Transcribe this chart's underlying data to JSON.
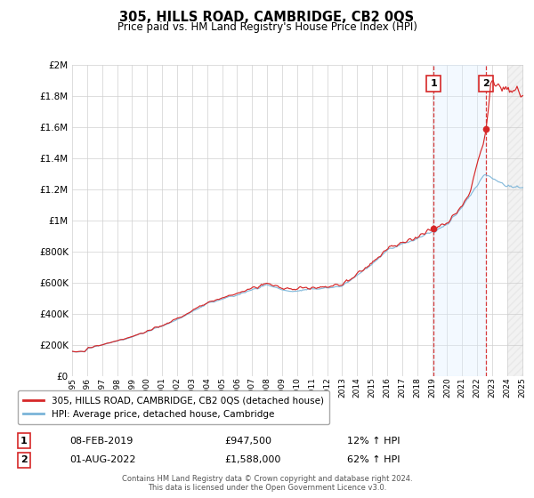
{
  "title": "305, HILLS ROAD, CAMBRIDGE, CB2 0QS",
  "subtitle": "Price paid vs. HM Land Registry's House Price Index (HPI)",
  "hpi_label": "HPI: Average price, detached house, Cambridge",
  "property_label": "305, HILLS ROAD, CAMBRIDGE, CB2 0QS (detached house)",
  "annotation1_date": "08-FEB-2019",
  "annotation1_price": "£947,500",
  "annotation1_hpi": "12% ↑ HPI",
  "annotation2_date": "01-AUG-2022",
  "annotation2_price": "£1,588,000",
  "annotation2_hpi": "62% ↑ HPI",
  "footer": "Contains HM Land Registry data © Crown copyright and database right 2024.\nThis data is licensed under the Open Government Licence v3.0.",
  "hpi_color": "#7ab4d8",
  "property_color": "#d62728",
  "vline_color": "#d62728",
  "highlight_color": "#ddeeff",
  "ylim": [
    0,
    2000000
  ],
  "yticks": [
    0,
    200000,
    400000,
    600000,
    800000,
    1000000,
    1200000,
    1400000,
    1600000,
    1800000,
    2000000
  ],
  "start_year": 1995,
  "end_year": 2025,
  "sale1_year": 2019.1,
  "sale1_price": 947500,
  "sale2_year": 2022.58,
  "sale2_price": 1588000,
  "hpi_future_cutoff": 2024.0
}
